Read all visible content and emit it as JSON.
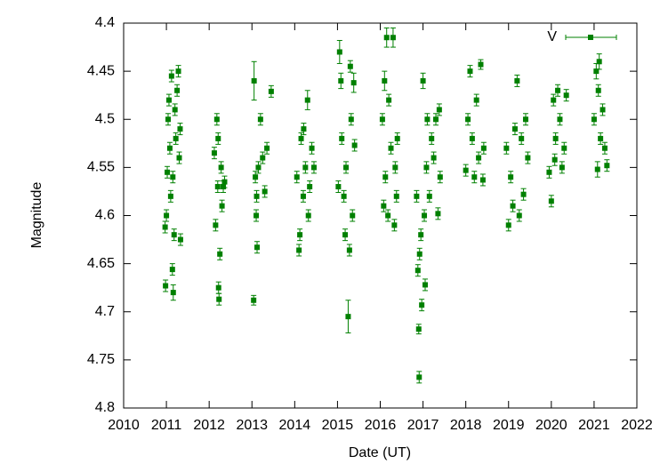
{
  "chart_data": {
    "type": "scatter",
    "x_label": "Date (UT)",
    "y_label": "Magnitude",
    "xlim": [
      2010,
      2022
    ],
    "xticks": [
      2010,
      2011,
      2012,
      2013,
      2014,
      2015,
      2016,
      2017,
      2018,
      2019,
      2020,
      2021,
      2022
    ],
    "ylim": [
      4.4,
      4.8
    ],
    "y_inverted": true,
    "yticks": [
      4.4,
      4.45,
      4.5,
      4.55,
      4.6,
      4.65,
      4.7,
      4.75,
      4.8
    ],
    "legend": "top-right",
    "series": [
      {
        "name": "V",
        "color": "#008000",
        "x": [
          2010.97,
          2010.98,
          2011.0,
          2011.02,
          2011.04,
          2011.06,
          2011.08,
          2011.1,
          2011.12,
          2011.14,
          2011.16,
          2011.18,
          2011.2,
          2011.22,
          2011.25,
          2011.28,
          2011.3,
          2011.32,
          2011.33,
          2011.15,
          2012.12,
          2012.15,
          2012.18,
          2012.2,
          2012.22,
          2012.23,
          2012.25,
          2012.28,
          2012.3,
          2012.33,
          2012.36,
          2012.21,
          2013.05,
          2013.08,
          2013.1,
          2013.12,
          2013.04,
          2013.15,
          2013.2,
          2013.25,
          2013.3,
          2013.35,
          2013.45,
          2013.11,
          2014.05,
          2014.1,
          2014.12,
          2014.15,
          2014.2,
          2014.25,
          2014.3,
          2014.32,
          2014.35,
          2014.4,
          2014.45,
          2014.21,
          2015.02,
          2015.05,
          2015.08,
          2015.1,
          2015.15,
          2015.18,
          2015.25,
          2015.28,
          2015.3,
          2015.32,
          2015.38,
          2015.4,
          2015.35,
          2015.2,
          2016.05,
          2016.08,
          2016.1,
          2016.12,
          2016.15,
          2016.2,
          2016.25,
          2016.3,
          2016.33,
          2016.35,
          2016.38,
          2016.4,
          2016.18,
          2016.85,
          2016.88,
          2016.9,
          2016.91,
          2016.92,
          2016.95,
          2016.97,
          2017.0,
          2017.03,
          2017.05,
          2017.08,
          2017.1,
          2017.15,
          2017.2,
          2017.25,
          2017.3,
          2017.35,
          2017.38,
          2017.4,
          2018.0,
          2018.05,
          2018.1,
          2018.15,
          2018.2,
          2018.25,
          2018.3,
          2018.35,
          2018.4,
          2018.42,
          2018.95,
          2019.0,
          2019.05,
          2019.1,
          2019.15,
          2019.2,
          2019.25,
          2019.3,
          2019.35,
          2019.4,
          2019.45,
          2019.95,
          2020.0,
          2020.05,
          2020.1,
          2020.15,
          2020.2,
          2020.25,
          2020.3,
          2020.35,
          2020.08,
          2021.0,
          2021.05,
          2021.08,
          2021.1,
          2021.15,
          2021.2,
          2021.25,
          2021.3,
          2021.12
        ],
        "values": [
          4.612,
          4.673,
          4.6,
          4.555,
          4.5,
          4.48,
          4.53,
          4.58,
          4.455,
          4.656,
          4.68,
          4.62,
          4.49,
          4.52,
          4.47,
          4.45,
          4.54,
          4.51,
          4.625,
          4.56,
          4.535,
          4.61,
          4.5,
          4.57,
          4.675,
          4.687,
          4.64,
          4.55,
          4.59,
          4.57,
          4.565,
          4.52,
          4.46,
          4.56,
          4.6,
          4.633,
          4.688,
          4.55,
          4.5,
          4.54,
          4.575,
          4.53,
          4.471,
          4.58,
          4.56,
          4.636,
          4.62,
          4.52,
          4.58,
          4.55,
          4.48,
          4.6,
          4.57,
          4.53,
          4.55,
          4.51,
          4.57,
          4.43,
          4.46,
          4.52,
          4.58,
          4.62,
          4.705,
          4.636,
          4.445,
          4.5,
          4.462,
          4.527,
          4.6,
          4.55,
          4.5,
          4.59,
          4.46,
          4.56,
          4.415,
          4.48,
          4.53,
          4.415,
          4.61,
          4.55,
          4.58,
          4.52,
          4.6,
          4.58,
          4.657,
          4.718,
          4.768,
          4.64,
          4.62,
          4.693,
          4.46,
          4.6,
          4.672,
          4.55,
          4.5,
          4.58,
          4.52,
          4.54,
          4.5,
          4.598,
          4.49,
          4.56,
          4.553,
          4.5,
          4.45,
          4.52,
          4.56,
          4.48,
          4.54,
          4.443,
          4.563,
          4.53,
          4.53,
          4.61,
          4.56,
          4.59,
          4.51,
          4.46,
          4.6,
          4.52,
          4.578,
          4.5,
          4.54,
          4.555,
          4.585,
          4.48,
          4.52,
          4.47,
          4.5,
          4.55,
          4.53,
          4.475,
          4.542,
          4.5,
          4.45,
          4.552,
          4.47,
          4.52,
          4.49,
          4.53,
          4.548,
          4.44
        ],
        "errors": [
          0.006,
          0.006,
          0.006,
          0.006,
          0.006,
          0.006,
          0.006,
          0.006,
          0.006,
          0.006,
          0.008,
          0.006,
          0.006,
          0.006,
          0.006,
          0.006,
          0.006,
          0.006,
          0.006,
          0.006,
          0.006,
          0.006,
          0.006,
          0.006,
          0.006,
          0.006,
          0.006,
          0.006,
          0.006,
          0.006,
          0.006,
          0.006,
          0.02,
          0.006,
          0.006,
          0.006,
          0.005,
          0.006,
          0.006,
          0.006,
          0.006,
          0.006,
          0.006,
          0.006,
          0.006,
          0.006,
          0.006,
          0.006,
          0.006,
          0.006,
          0.01,
          0.006,
          0.006,
          0.006,
          0.006,
          0.006,
          0.006,
          0.012,
          0.008,
          0.006,
          0.006,
          0.006,
          0.017,
          0.006,
          0.006,
          0.006,
          0.01,
          0.006,
          0.006,
          0.006,
          0.006,
          0.006,
          0.01,
          0.006,
          0.01,
          0.006,
          0.006,
          0.01,
          0.006,
          0.006,
          0.006,
          0.006,
          0.006,
          0.006,
          0.006,
          0.005,
          0.006,
          0.006,
          0.006,
          0.006,
          0.008,
          0.006,
          0.006,
          0.006,
          0.006,
          0.006,
          0.006,
          0.006,
          0.006,
          0.006,
          0.006,
          0.006,
          0.006,
          0.006,
          0.006,
          0.006,
          0.006,
          0.006,
          0.006,
          0.005,
          0.006,
          0.006,
          0.006,
          0.006,
          0.006,
          0.006,
          0.006,
          0.006,
          0.006,
          0.006,
          0.006,
          0.006,
          0.006,
          0.006,
          0.006,
          0.006,
          0.006,
          0.006,
          0.006,
          0.006,
          0.006,
          0.006,
          0.006,
          0.006,
          0.008,
          0.008,
          0.006,
          0.006,
          0.006,
          0.006,
          0.006,
          0.008
        ]
      }
    ]
  }
}
